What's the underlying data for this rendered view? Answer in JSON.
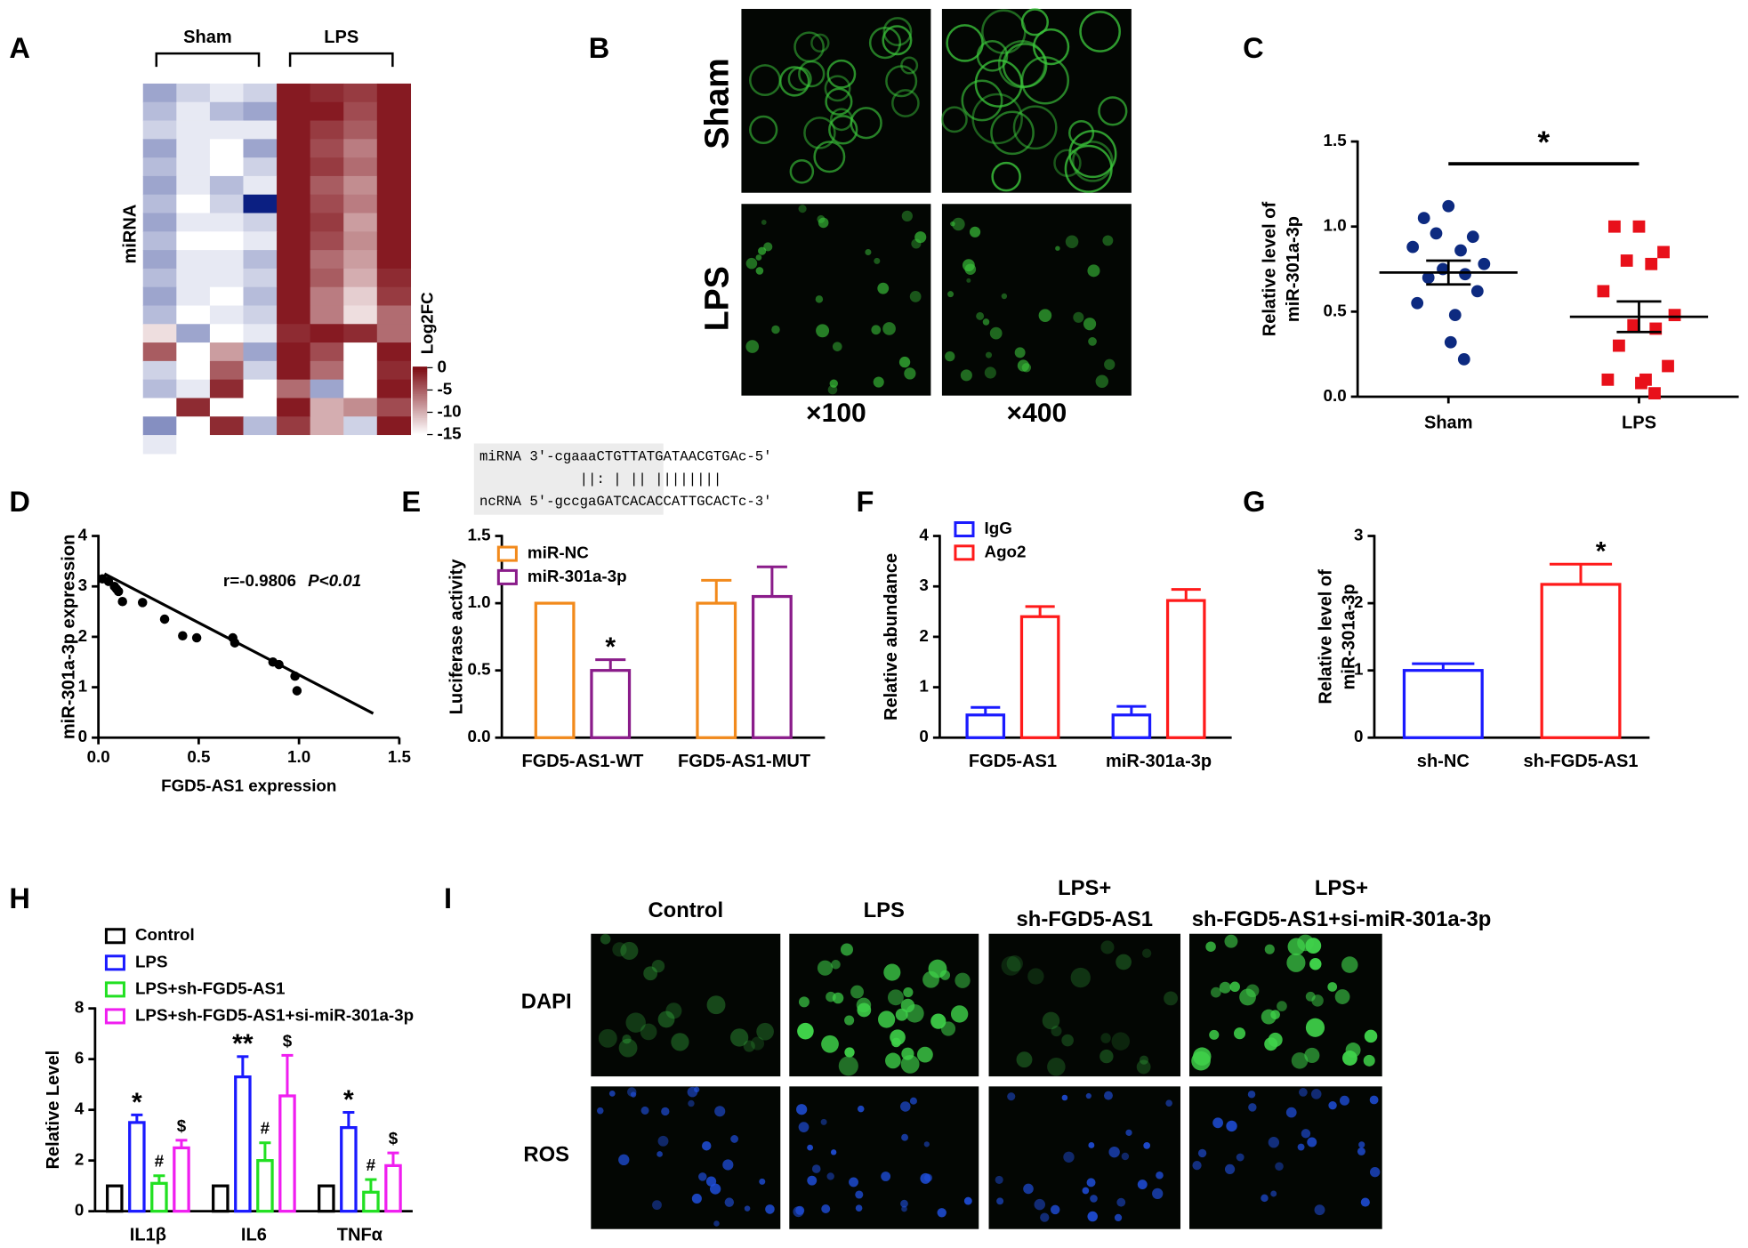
{
  "chart_data": [
    {
      "type": "heatmap",
      "panel": "A",
      "group_labels": [
        "Sham",
        "LPS"
      ],
      "ylabel": "miRNA",
      "colorbar_label": "Log2FC",
      "zlim": [
        -25,
        0
      ],
      "zmid": -15,
      "colors": {
        "low": "#0b1f82",
        "mid": "#ffffff",
        "high": "#7d0a12"
      },
      "colorbar_ticks": [
        0,
        -5,
        -10,
        -15
      ],
      "values": [
        [
          -19,
          -17,
          -16,
          -17,
          -1,
          -2,
          -3,
          -1
        ],
        [
          -18,
          -16,
          -18,
          -19,
          -1,
          -1,
          -4,
          -1
        ],
        [
          -17,
          -16,
          -16,
          -16,
          -1,
          -3,
          -5,
          -1
        ],
        [
          -19,
          -16,
          -15,
          -19,
          -1,
          -4,
          -7,
          -1
        ],
        [
          -18,
          -16,
          -15,
          -17,
          -1,
          -3,
          -6,
          -1
        ],
        [
          -19,
          -16,
          -18,
          -16,
          -1,
          -5,
          -8,
          -1
        ],
        [
          -18,
          -15,
          -17,
          -25,
          -1,
          -4,
          -7,
          -1
        ],
        [
          -19,
          -16,
          -16,
          -17,
          -1,
          -3,
          -9,
          -1
        ],
        [
          -18,
          -15,
          -15,
          -16,
          -1,
          -4,
          -8,
          -1
        ],
        [
          -19,
          -16,
          -16,
          -18,
          -1,
          -6,
          -9,
          -1
        ],
        [
          -18,
          -16,
          -16,
          -17,
          -1,
          -5,
          -10,
          -2
        ],
        [
          -19,
          -16,
          -15,
          -18,
          -1,
          -7,
          -12,
          -3
        ],
        [
          -18,
          -15,
          -16,
          -17,
          -1,
          -7,
          -13,
          -6
        ],
        [
          -13,
          -19,
          -15,
          -16,
          -2,
          -1,
          -2,
          -6
        ],
        [
          -5,
          -15,
          -9,
          -19,
          -1,
          -4,
          -15,
          -1
        ],
        [
          -17,
          -15,
          -5,
          -17,
          -1,
          -6,
          -15,
          -2
        ],
        [
          -18,
          -16,
          -2,
          -15,
          -6,
          -19,
          -15,
          -1
        ],
        [
          -15,
          -2,
          -15,
          -15,
          -1,
          -10,
          -8,
          -4
        ],
        [
          -20,
          -15,
          -2,
          -18,
          -3,
          -10,
          -17,
          -1
        ],
        [
          -16,
          -15,
          -15,
          -15,
          -15,
          -15,
          -15,
          -15
        ]
      ]
    },
    {
      "type": "dotplot",
      "panel": "C",
      "categories": [
        "Sham",
        "LPS"
      ],
      "ylabel": [
        "Relative level of",
        "miR-301a-3p"
      ],
      "ylim": [
        0,
        1.5
      ],
      "yticks": [
        {
          "value": 0,
          "label": "0.0"
        },
        {
          "value": 0.5,
          "label": "0.5"
        },
        {
          "value": 1,
          "label": "1.0"
        },
        {
          "value": 1.5,
          "label": "1.5"
        }
      ],
      "significance": "*",
      "groups": [
        {
          "color": "#0d2a80",
          "marker": "circle",
          "values": [
            1.12,
            1.05,
            0.94,
            0.96,
            0.86,
            0.88,
            0.78,
            0.75,
            0.72,
            0.7,
            0.62,
            0.55,
            0.48,
            0.32,
            0.22
          ],
          "mean": 0.73,
          "sem": 0.07
        },
        {
          "color": "#e8101a",
          "marker": "square",
          "values": [
            1.0,
            1.0,
            0.85,
            0.8,
            0.78,
            0.62,
            0.48,
            0.42,
            0.4,
            0.3,
            0.18,
            0.1,
            0.1,
            0.08,
            0.02
          ],
          "mean": 0.47,
          "sem": 0.09
        }
      ]
    },
    {
      "type": "scatter",
      "panel": "D",
      "xlabel": "FGD5-AS1 expression",
      "ylabel": "miR-301a-3p expression",
      "annotations": [
        "r=-0.9806",
        "P<0.01"
      ],
      "xlim": [
        0,
        1.5
      ],
      "xticks": [
        {
          "value": 0,
          "label": "0.0"
        },
        {
          "value": 0.5,
          "label": "0.5"
        },
        {
          "value": 1,
          "label": "1.0"
        },
        {
          "value": 1.5,
          "label": "1.5"
        }
      ],
      "ylim": [
        0,
        4
      ],
      "yticks": [
        0,
        1,
        2,
        3,
        4
      ],
      "x": [
        0.02,
        0.05,
        0.08,
        0.09,
        0.1,
        0.12,
        0.22,
        0.33,
        0.42,
        0.49,
        0.67,
        0.68,
        0.87,
        0.9,
        0.98,
        0.99
      ],
      "y": [
        3.15,
        3.1,
        3.0,
        2.95,
        2.9,
        2.7,
        2.68,
        2.35,
        2.02,
        1.98,
        1.98,
        1.88,
        1.5,
        1.45,
        1.22,
        0.93
      ],
      "fit": {
        "x": [
          0.03,
          1.37
        ],
        "y": [
          3.25,
          0.48
        ]
      }
    },
    {
      "type": "bar",
      "panel": "E",
      "ylabel": "Luciferase activity",
      "alignment": [
        "miRNA 3'-cgaaaCTGTTATGATAACGTGAc-5'",
        "            ||: | || ||||||||",
        "ncRNA 5'-gccgaGATCACACCATTGCACTc-3'"
      ],
      "categories": [
        "FGD5-AS1-WT",
        "FGD5-AS1-MUT"
      ],
      "ylim": [
        0,
        1.5
      ],
      "yticks": [
        {
          "value": 0,
          "label": "0.0"
        },
        {
          "value": 0.5,
          "label": "0.5"
        },
        {
          "value": 1,
          "label": "1.0"
        },
        {
          "value": 1.5,
          "label": "1.5"
        }
      ],
      "series": [
        {
          "name": "miR-NC",
          "color": "#f28a1c",
          "values": [
            1.0,
            1.0
          ],
          "errors": [
            0,
            0.17
          ],
          "sig": [
            null,
            null
          ]
        },
        {
          "name": "miR-301a-3p",
          "color": "#8a1c8a",
          "values": [
            0.5,
            1.05
          ],
          "errors": [
            0.08,
            0.22
          ],
          "sig": [
            "*",
            null
          ]
        }
      ]
    },
    {
      "type": "bar",
      "panel": "F",
      "ylabel": "Relative  abundance",
      "categories": [
        "FGD5-AS1",
        "miR-301a-3p"
      ],
      "ylim": [
        0,
        4
      ],
      "yticks": [
        0,
        1,
        2,
        3,
        4
      ],
      "series": [
        {
          "name": "IgG",
          "color": "#1a1aff",
          "values": [
            0.45,
            0.45
          ],
          "errors": [
            0.15,
            0.17
          ]
        },
        {
          "name": "Ago2",
          "color": "#ff1a1a",
          "values": [
            2.4,
            2.72
          ],
          "errors": [
            0.2,
            0.22
          ]
        }
      ]
    },
    {
      "type": "bar",
      "panel": "G",
      "ylabel": [
        "Relative level of",
        "miR-301a-3p"
      ],
      "categories": [
        "sh-NC",
        "sh-FGD5-AS1"
      ],
      "ylim": [
        0,
        3
      ],
      "yticks": [
        0,
        1,
        2,
        3
      ],
      "values": [
        1.0,
        2.28
      ],
      "errors": [
        0.1,
        0.3
      ],
      "colors": [
        "#1a1aff",
        "#ff1a1a"
      ],
      "sig": [
        null,
        "*"
      ]
    },
    {
      "type": "bar",
      "panel": "H",
      "ylabel": "Relative Level",
      "categories": [
        "IL1β",
        "IL6",
        "TNFα"
      ],
      "ylim": [
        0,
        8
      ],
      "yticks": [
        0,
        2,
        4,
        6,
        8
      ],
      "series": [
        {
          "name": "Control",
          "color": "#000000",
          "values": [
            1,
            1,
            1
          ],
          "errors": [
            0,
            0,
            0
          ]
        },
        {
          "name": "LPS",
          "color": "#1a1aff",
          "values": [
            3.5,
            5.3,
            3.3
          ],
          "errors": [
            0.3,
            0.8,
            0.6
          ],
          "sig": [
            "*",
            "**",
            "*"
          ]
        },
        {
          "name": "LPS+sh-FGD5-AS1",
          "color": "#22e022",
          "values": [
            1.1,
            2.0,
            0.75
          ],
          "errors": [
            0.3,
            0.7,
            0.5
          ],
          "sig": [
            "#",
            "#",
            "#"
          ]
        },
        {
          "name": "LPS+sh-FGD5-AS1+si-miR-301a-3p",
          "color": "#f01ef0",
          "values": [
            2.5,
            4.55,
            1.8
          ],
          "errors": [
            0.3,
            1.6,
            0.5
          ],
          "sig": [
            "$",
            "$",
            "$"
          ]
        }
      ]
    }
  ],
  "image_panels": [
    {
      "panel": "B",
      "rows": [
        "Sham",
        "LPS"
      ],
      "columns": [
        [
          "×100"
        ],
        [
          "×400"
        ]
      ]
    },
    {
      "panel": "I",
      "rows": [
        "DAPI",
        "ROS"
      ],
      "columns": [
        [
          "Control"
        ],
        [
          "LPS"
        ],
        [
          "LPS+",
          "sh-FGD5-AS1"
        ],
        [
          "LPS+",
          "sh-FGD5-AS1+si-miR-301a-3p"
        ]
      ]
    }
  ]
}
